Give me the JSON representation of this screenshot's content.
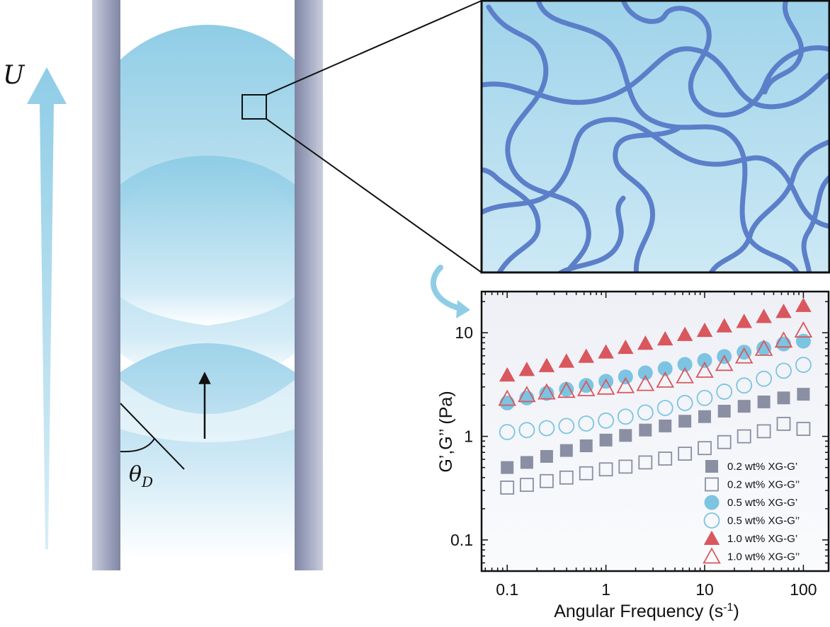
{
  "schematic": {
    "velocity_symbol": "U",
    "angle_symbol": "θ",
    "angle_subscript": "D"
  },
  "colors": {
    "fluid": "#8fcde6",
    "polymer": "#5b7fc9",
    "wall": "#a3a9c2",
    "series_02": "#8a8fa3",
    "series_05": "#7cc4e2",
    "series_10": "#d9575d"
  },
  "chart_data": {
    "type": "scatter",
    "xlabel": "Angular Frequency (s-1)",
    "ylabel": "G’,G’’ (Pa)",
    "xscale": "log",
    "yscale": "log",
    "xlim": [
      0.055,
      180
    ],
    "ylim": [
      0.05,
      25
    ],
    "xticks": [
      0.1,
      1,
      10,
      100
    ],
    "xtick_labels": [
      "0.1",
      "1",
      "10",
      "100"
    ],
    "yticks": [
      0.1,
      1,
      10
    ],
    "ytick_labels": [
      "0.1",
      "1",
      "10"
    ],
    "grid": false,
    "legend_position": "bottom-right",
    "x": [
      0.1,
      0.158,
      0.251,
      0.398,
      0.631,
      1,
      1.58,
      2.51,
      3.98,
      6.31,
      10,
      15.8,
      25.1,
      39.8,
      63.1,
      100
    ],
    "series": [
      {
        "name": "0.2 wt% XG-G’",
        "marker": "square",
        "filled": true,
        "color": "#8a8fa3",
        "values": [
          0.5,
          0.56,
          0.64,
          0.73,
          0.81,
          0.92,
          1.02,
          1.15,
          1.26,
          1.4,
          1.55,
          1.75,
          1.95,
          2.15,
          2.35,
          2.55
        ]
      },
      {
        "name": "0.2 wt% XG-G’’",
        "marker": "square",
        "filled": false,
        "color": "#8a8fa3",
        "values": [
          0.32,
          0.34,
          0.37,
          0.4,
          0.44,
          0.48,
          0.51,
          0.56,
          0.61,
          0.68,
          0.77,
          0.88,
          1.0,
          1.12,
          1.32,
          1.18
        ]
      },
      {
        "name": "0.5 wt% XG-G’",
        "marker": "circle",
        "filled": true,
        "color": "#7cc4e2",
        "values": [
          2.1,
          2.35,
          2.6,
          2.85,
          3.1,
          3.4,
          3.75,
          4.1,
          4.5,
          4.95,
          5.4,
          5.9,
          6.5,
          7.1,
          7.8,
          8.3
        ]
      },
      {
        "name": "0.5 wt% XG-G’’",
        "marker": "circle",
        "filled": false,
        "color": "#7cc4e2",
        "values": [
          1.1,
          1.15,
          1.2,
          1.26,
          1.33,
          1.42,
          1.55,
          1.7,
          1.88,
          2.1,
          2.35,
          2.7,
          3.1,
          3.6,
          4.3,
          4.9
        ]
      },
      {
        "name": "1.0 wt% XG-G’",
        "marker": "triangle",
        "filled": true,
        "color": "#d9575d",
        "values": [
          3.9,
          4.4,
          4.8,
          5.3,
          5.9,
          6.5,
          7.2,
          7.9,
          8.7,
          9.6,
          10.5,
          11.6,
          12.8,
          14.3,
          16.0,
          18.3
        ]
      },
      {
        "name": "1.0 wt% XG-G’’",
        "marker": "triangle",
        "filled": false,
        "color": "#d9575d",
        "values": [
          2.3,
          2.5,
          2.65,
          2.75,
          2.85,
          2.95,
          3.05,
          3.2,
          3.45,
          3.8,
          4.3,
          5.0,
          5.9,
          7.0,
          8.4,
          10.5
        ]
      }
    ]
  }
}
